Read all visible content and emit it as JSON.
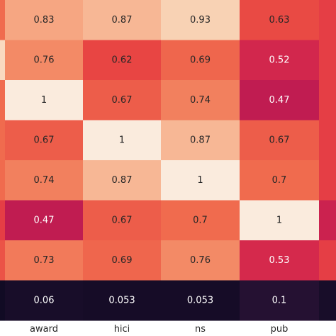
{
  "chart_data": {
    "type": "heatmap",
    "columns": [
      "",
      "award",
      "hici",
      "ns",
      "pub",
      ""
    ],
    "rows": [
      {
        "values": [
          0.7,
          0.83,
          0.87,
          0.93,
          0.63,
          0.6
        ],
        "labels": [
          "",
          "0.83",
          "0.87",
          "0.93",
          "0.63",
          ""
        ]
      },
      {
        "values": [
          0.95,
          0.76,
          0.62,
          0.69,
          0.52,
          0.6
        ],
        "labels": [
          "",
          "0.76",
          "0.62",
          "0.69",
          "0.52",
          ""
        ]
      },
      {
        "values": [
          0.7,
          1,
          0.67,
          0.74,
          0.47,
          0.6
        ],
        "labels": [
          "",
          "1",
          "0.67",
          "0.74",
          "0.47",
          ""
        ]
      },
      {
        "values": [
          0.7,
          0.67,
          1,
          0.87,
          0.67,
          0.6
        ],
        "labels": [
          "",
          "0.67",
          "1",
          "0.87",
          "0.67",
          ""
        ]
      },
      {
        "values": [
          0.7,
          0.74,
          0.87,
          1,
          0.7,
          0.6
        ],
        "labels": [
          "",
          "0.74",
          "0.87",
          "1",
          "0.7",
          ""
        ]
      },
      {
        "values": [
          0.6,
          0.47,
          0.67,
          0.7,
          1,
          0.5
        ],
        "labels": [
          "",
          "0.47",
          "0.67",
          "0.7",
          "1",
          ""
        ]
      },
      {
        "values": [
          0.65,
          0.73,
          0.69,
          0.76,
          0.53,
          0.6
        ],
        "labels": [
          "",
          "0.73",
          "0.69",
          "0.76",
          "0.53",
          ""
        ]
      },
      {
        "values": [
          0.04,
          0.06,
          0.053,
          0.053,
          0.1,
          0.06
        ],
        "labels": [
          "",
          "0.06",
          "0.053",
          "0.053",
          "0.1",
          ""
        ]
      }
    ],
    "colormap": "rocket",
    "vmin": 0,
    "vmax": 1,
    "annotations": true
  }
}
